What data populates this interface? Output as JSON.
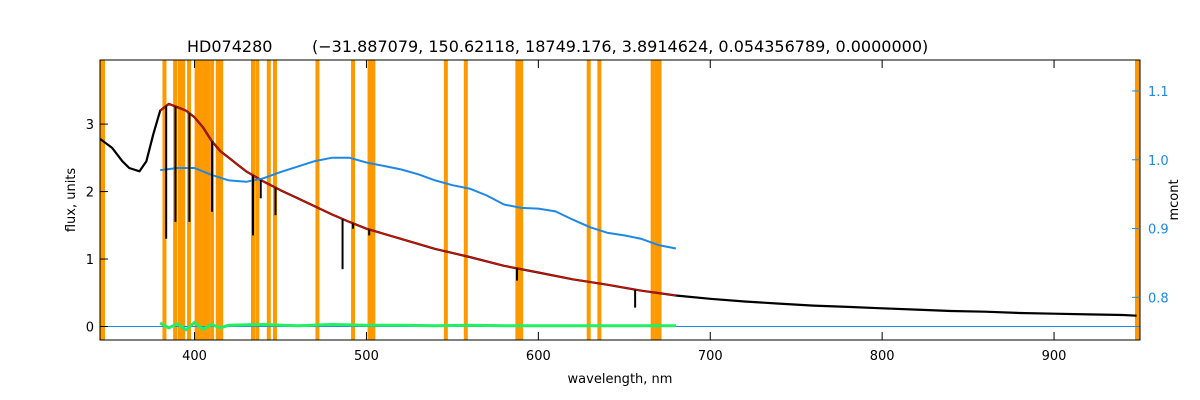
{
  "chart_data": {
    "type": "line",
    "title": "HD074280",
    "subtitle": "(−31.887079, 150.62118, 18749.176, 3.8914624, 0.054356789, 0.0000000)",
    "xlabel": "wavelength, nm",
    "ylabel": "flux, units",
    "y2label": "mcont",
    "xlim": [
      345,
      950
    ],
    "ylim": [
      -0.2,
      3.95
    ],
    "y2lim": [
      0.738,
      1.145
    ],
    "x_ticks": [
      400,
      500,
      600,
      700,
      800,
      900
    ],
    "y_ticks": [
      0,
      1,
      2,
      3
    ],
    "y2_ticks": [
      0.8,
      0.9,
      1.0,
      1.1
    ],
    "y2_tick_labels": [
      "0.8",
      "0.9",
      "1.0",
      "1.1"
    ],
    "grid": false,
    "colors": {
      "observed": "#000000",
      "model": "#cc1100",
      "mcont": "#1e88e5",
      "residual": "#22ee66",
      "zero_line": "#1e88e5",
      "masks": "#ff9900",
      "right_axis": "#1e88e5"
    },
    "mask_wavelengths": [
      382.5,
      388.7,
      391.3,
      393.4,
      396.8,
      401.2,
      403.4,
      405.6,
      407.8,
      410.2,
      413.5,
      415.5,
      434.0,
      436.5,
      443.2,
      446.8,
      471.5,
      492.2,
      501.8,
      504.0,
      546.2,
      557.8,
      587.8,
      589.0,
      590.0,
      629.3,
      635.5,
      666.5,
      668.8,
      670.5
    ],
    "series": [
      {
        "role": "observed",
        "x": [
          345,
          352,
          358,
          362,
          368,
          372,
          376,
          380,
          385,
          390,
          395,
          400,
          405,
          410,
          415,
          420,
          425,
          430,
          440,
          450,
          460,
          470,
          480,
          490,
          500,
          520,
          540,
          560,
          580,
          600,
          620,
          640,
          660,
          680,
          700,
          720,
          740,
          760,
          780,
          800,
          820,
          840,
          860,
          880,
          900,
          920,
          940,
          948
        ],
        "y": [
          2.78,
          2.65,
          2.45,
          2.35,
          2.3,
          2.45,
          2.85,
          3.2,
          3.3,
          3.25,
          3.2,
          3.1,
          2.95,
          2.75,
          2.6,
          2.5,
          2.4,
          2.3,
          2.15,
          2.02,
          1.9,
          1.78,
          1.66,
          1.55,
          1.45,
          1.3,
          1.15,
          1.03,
          0.9,
          0.8,
          0.7,
          0.62,
          0.53,
          0.46,
          0.41,
          0.37,
          0.34,
          0.31,
          0.29,
          0.27,
          0.25,
          0.23,
          0.22,
          0.2,
          0.19,
          0.18,
          0.17,
          0.16
        ]
      },
      {
        "role": "model",
        "x": [
          380,
          385,
          390,
          395,
          400,
          405,
          410,
          415,
          420,
          425,
          430,
          440,
          450,
          460,
          470,
          480,
          490,
          500,
          520,
          540,
          560,
          580,
          600,
          620,
          640,
          660,
          680
        ],
        "y": [
          3.2,
          3.3,
          3.25,
          3.2,
          3.1,
          2.95,
          2.75,
          2.6,
          2.5,
          2.4,
          2.3,
          2.15,
          2.02,
          1.9,
          1.78,
          1.66,
          1.55,
          1.45,
          1.3,
          1.15,
          1.03,
          0.9,
          0.8,
          0.7,
          0.62,
          0.53,
          0.46
        ]
      },
      {
        "role": "mcont",
        "axis": "right",
        "x": [
          380,
          390,
          400,
          410,
          420,
          430,
          440,
          450,
          460,
          470,
          480,
          490,
          500,
          510,
          520,
          530,
          540,
          550,
          560,
          570,
          580,
          590,
          600,
          610,
          620,
          630,
          640,
          650,
          660,
          670,
          680
        ],
        "y": [
          0.985,
          0.988,
          0.988,
          0.978,
          0.97,
          0.968,
          0.973,
          0.982,
          0.99,
          0.998,
          1.003,
          1.003,
          0.996,
          0.991,
          0.986,
          0.979,
          0.97,
          0.963,
          0.958,
          0.948,
          0.935,
          0.93,
          0.929,
          0.925,
          0.913,
          0.902,
          0.894,
          0.89,
          0.885,
          0.876,
          0.871
        ]
      },
      {
        "role": "residual",
        "x": [
          380,
          385,
          390,
          395,
          400,
          405,
          410,
          415,
          420,
          440,
          460,
          480,
          500,
          520,
          540,
          560,
          580,
          600,
          620,
          640,
          660,
          680
        ],
        "y": [
          0.05,
          -0.02,
          0.04,
          -0.05,
          0.06,
          -0.04,
          0.03,
          -0.02,
          0.02,
          0.03,
          0.01,
          0.03,
          0.02,
          0.02,
          0.01,
          0.02,
          0.01,
          0.01,
          0.01,
          0.01,
          0.01,
          0.01
        ]
      }
    ],
    "absorption_lines": {
      "observed": [
        [
          383.5,
          1.3
        ],
        [
          388.9,
          1.55
        ],
        [
          397.0,
          1.55
        ],
        [
          410.2,
          1.7
        ],
        [
          434.0,
          1.35
        ],
        [
          438.5,
          1.9
        ],
        [
          447.1,
          1.65
        ],
        [
          486.1,
          0.85
        ],
        [
          492.2,
          1.45
        ],
        [
          501.6,
          1.35
        ],
        [
          587.6,
          0.68
        ],
        [
          656.3,
          0.28
        ]
      ]
    }
  }
}
